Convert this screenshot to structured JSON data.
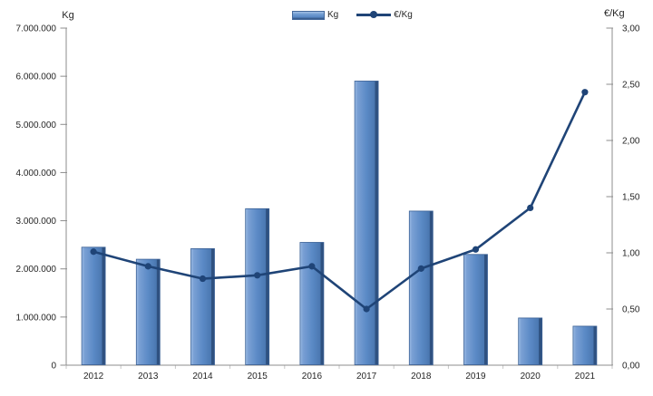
{
  "chart_data": {
    "type": "combo-bar-line",
    "title": "",
    "categories": [
      "2012",
      "2013",
      "2014",
      "2015",
      "2016",
      "2017",
      "2018",
      "2019",
      "2020",
      "2021"
    ],
    "series": [
      {
        "name": "Kg",
        "type": "bar",
        "axis": "left",
        "values": [
          2450000,
          2200000,
          2420000,
          3250000,
          2550000,
          5900000,
          3200000,
          2300000,
          980000,
          810000
        ]
      },
      {
        "name": "€/Kg",
        "type": "line",
        "axis": "right",
        "values": [
          1.01,
          0.88,
          0.77,
          0.8,
          0.88,
          0.5,
          0.86,
          1.03,
          1.4,
          2.43
        ]
      }
    ],
    "left_axis": {
      "title": "Kg",
      "min": 0,
      "max": 7000000,
      "step": 1000000,
      "tick_labels": [
        "0",
        "1.000.000",
        "2.000.000",
        "3.000.000",
        "4.000.000",
        "5.000.000",
        "6.000.000",
        "7.000.000"
      ]
    },
    "right_axis": {
      "title": "€/Kg",
      "min": 0,
      "max": 3,
      "step": 0.5,
      "tick_labels": [
        "0,00",
        "0,50",
        "1,00",
        "1,50",
        "2,00",
        "2,50",
        "3,00"
      ]
    },
    "legend": [
      {
        "label": "Kg",
        "marker": "bar"
      },
      {
        "label": "€/Kg",
        "marker": "line"
      }
    ],
    "grid": "off",
    "legend_position": "top-center",
    "colors": {
      "bar_fill": "#5b8ac6",
      "bar_light": "#9cbce4",
      "bar_dark": "#2f5180",
      "bar_stroke": "#3a6095",
      "line": "#1f4477",
      "axis": "#8c8c8c",
      "text": "#262626"
    }
  }
}
